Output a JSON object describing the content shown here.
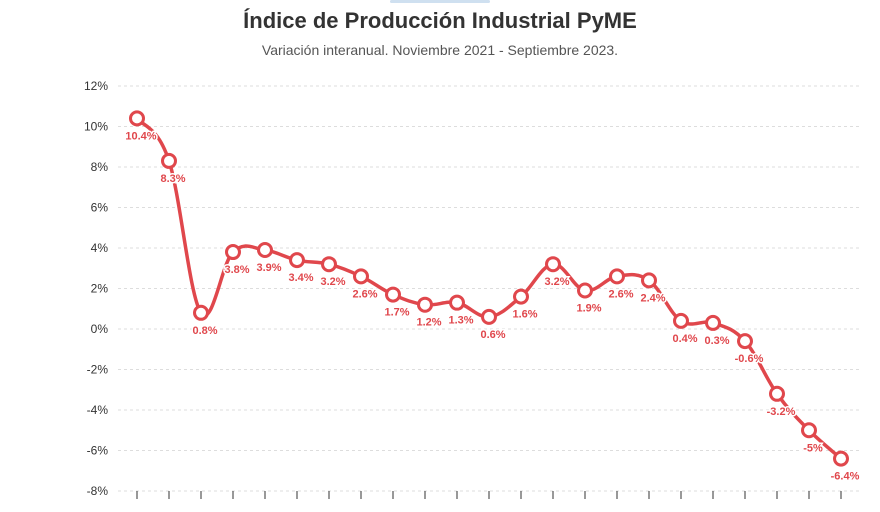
{
  "chart_data": {
    "type": "line",
    "title": "Índice de Producción Industrial PyME",
    "subtitle": "Variación interanual. Noviembre 2021 - Septiembre 2023.",
    "xlabel": "",
    "ylabel": "",
    "ylim": [
      -8,
      12
    ],
    "y_ticks": [
      "12%",
      "10%",
      "8%",
      "6%",
      "4%",
      "2%",
      "0%",
      "-2%",
      "-4%",
      "-6%",
      "-8%"
    ],
    "grid": true,
    "line_color": "#e0474c",
    "series": [
      {
        "values": [
          10.4,
          8.3,
          0.8,
          3.8,
          3.9,
          3.4,
          3.2,
          2.6,
          1.7,
          1.2,
          1.3,
          0.6,
          1.6,
          3.2,
          1.9,
          2.6,
          2.4,
          0.4,
          0.3,
          -0.6,
          -3.2,
          -5,
          -6.4
        ],
        "labels": [
          "10.4%",
          "8.3%",
          "0.8%",
          "3.8%",
          "3.9%",
          "3.4%",
          "3.2%",
          "2.6%",
          "1.7%",
          "1.2%",
          "1.3%",
          "0.6%",
          "1.6%",
          "3.2%",
          "1.9%",
          "2.6%",
          "2.4%",
          "0.4%",
          "0.3%",
          "-0.6%",
          "-3.2%",
          "-5%",
          "-6.4%"
        ]
      }
    ]
  }
}
